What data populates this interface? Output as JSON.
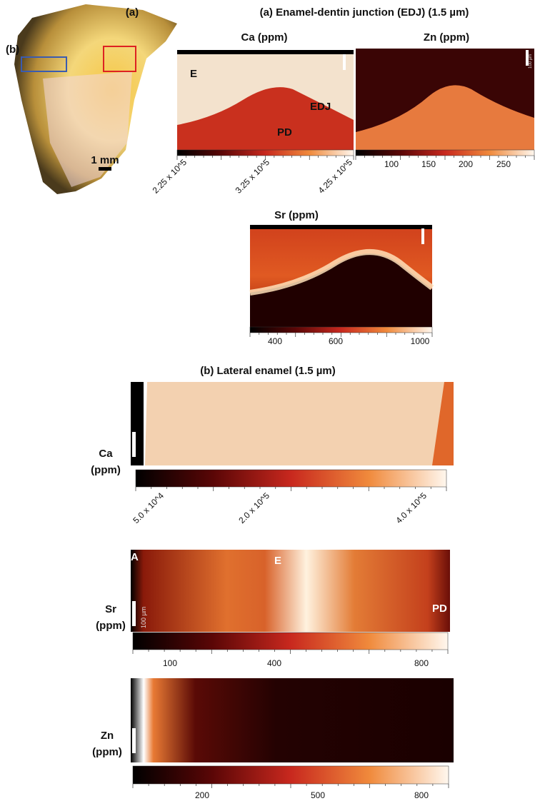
{
  "panel_a": {
    "label": "(a)",
    "title": "(a) Enamel-dentin junction (EDJ) (1.5 µm)",
    "maps": [
      {
        "title": "Ca (ppm)",
        "region_labels": [
          "E",
          "EDJ",
          "PD"
        ],
        "colorbar_ticks": [
          "2.25 x 10^5",
          "3.25 x 10^5",
          "4.25 x 10^5"
        ]
      },
      {
        "title": "Zn (ppm)",
        "colorbar_ticks": [
          "100",
          "150",
          "200",
          "250"
        ]
      },
      {
        "title": "Sr (ppm)",
        "colorbar_ticks": [
          "400",
          "600",
          "1000"
        ]
      }
    ]
  },
  "tooth_image": {
    "region_label": "(b)",
    "scale_bar": "1 mm"
  },
  "scale_bar_label": "100 µm",
  "panel_b": {
    "title": "(b) Lateral enamel (1.5 µm)",
    "maps": [
      {
        "element": "Ca",
        "unit": "(ppm)",
        "colorbar_ticks": [
          "5.0 x 10^4",
          "2.0 x 10^5",
          "4.0 x 10^5"
        ]
      },
      {
        "element": "Sr",
        "unit": "(ppm)",
        "region_labels": [
          "A",
          "E",
          "PD"
        ],
        "colorbar_ticks": [
          "100",
          "400",
          "800"
        ]
      },
      {
        "element": "Zn",
        "unit": "(ppm)",
        "colorbar_ticks": [
          "200",
          "500",
          "800"
        ]
      }
    ]
  }
}
